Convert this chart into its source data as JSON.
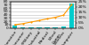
{
  "categories": [
    "Automotive",
    "Consumer",
    "Gov/Military",
    "Industrial",
    "Medical",
    "Wired\nComm",
    "Wireless",
    "Computer"
  ],
  "bar_values": [
    8.0,
    1.2,
    0.4,
    2.5,
    1.5,
    1.8,
    5.5,
    73.0
  ],
  "growth_values": [
    3.0,
    4.0,
    5.5,
    7.0,
    8.5,
    10.0,
    12.0,
    22.0
  ],
  "bar_color": "#00cccc",
  "line_color": "#ff9900",
  "bg_color": "#d0d0d0",
  "plot_bg": "#ffffff",
  "left_ylim": [
    0,
    80
  ],
  "right_ylim": [
    0,
    25
  ],
  "left_yticks": [
    0,
    10,
    20,
    30,
    40,
    50,
    60,
    70,
    80
  ],
  "right_ytick_labels": [
    "0%",
    "5%",
    "10%",
    "15%",
    "20%",
    "25%"
  ],
  "right_ytick_vals": [
    0,
    5,
    10,
    15,
    20,
    25
  ],
  "grid_color": "#bbbbbb",
  "tick_fontsize": 3.2,
  "label_rotation": 55
}
